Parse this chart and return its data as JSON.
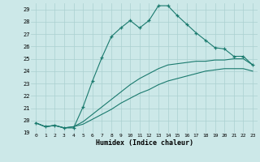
{
  "xlabel": "Humidex (Indice chaleur)",
  "background_color": "#cce8e8",
  "grid_color": "#aad0d0",
  "line_color": "#1a7a6e",
  "xlim": [
    -0.5,
    23.5
  ],
  "ylim": [
    19,
    29.5
  ],
  "yticks": [
    19,
    20,
    21,
    22,
    23,
    24,
    25,
    26,
    27,
    28,
    29
  ],
  "xticks": [
    0,
    1,
    2,
    3,
    4,
    5,
    6,
    7,
    8,
    9,
    10,
    11,
    12,
    13,
    14,
    15,
    16,
    17,
    18,
    19,
    20,
    21,
    22,
    23
  ],
  "series": [
    {
      "x": [
        0,
        1,
        2,
        3,
        4,
        5,
        6,
        7,
        8,
        9,
        10,
        11,
        12,
        13,
        14,
        15,
        16,
        17,
        18,
        19,
        20,
        21,
        22,
        23
      ],
      "y": [
        19.8,
        19.5,
        19.6,
        19.4,
        19.4,
        21.1,
        23.2,
        25.1,
        26.8,
        27.5,
        28.1,
        27.5,
        28.1,
        29.3,
        29.3,
        28.5,
        27.8,
        27.1,
        26.5,
        25.9,
        25.8,
        25.2,
        25.2,
        24.5
      ],
      "marker": "+"
    },
    {
      "x": [
        0,
        1,
        2,
        3,
        4,
        5,
        6,
        7,
        8,
        9,
        10,
        11,
        12,
        13,
        14,
        15,
        16,
        17,
        18,
        19,
        20,
        21,
        22,
        23
      ],
      "y": [
        19.8,
        19.5,
        19.6,
        19.4,
        19.5,
        19.9,
        20.5,
        21.1,
        21.7,
        22.3,
        22.9,
        23.4,
        23.8,
        24.2,
        24.5,
        24.6,
        24.7,
        24.8,
        24.8,
        24.9,
        24.9,
        25.0,
        25.0,
        24.5
      ],
      "marker": null
    },
    {
      "x": [
        0,
        1,
        2,
        3,
        4,
        5,
        6,
        7,
        8,
        9,
        10,
        11,
        12,
        13,
        14,
        15,
        16,
        17,
        18,
        19,
        20,
        21,
        22,
        23
      ],
      "y": [
        19.8,
        19.5,
        19.6,
        19.4,
        19.5,
        19.7,
        20.1,
        20.5,
        20.9,
        21.4,
        21.8,
        22.2,
        22.5,
        22.9,
        23.2,
        23.4,
        23.6,
        23.8,
        24.0,
        24.1,
        24.2,
        24.2,
        24.2,
        24.0
      ],
      "marker": null
    }
  ]
}
